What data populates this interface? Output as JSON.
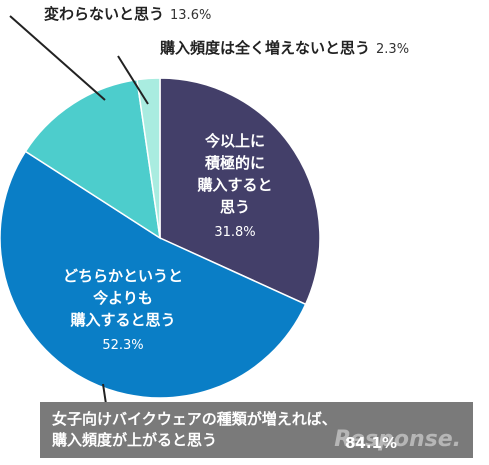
{
  "chart_data": {
    "type": "pie",
    "slices": [
      {
        "label": "今以上に積極的に購入すると思う",
        "label_lines": [
          "今以上に",
          "積極的に",
          "購入すると",
          "思う"
        ],
        "value": 31.8,
        "pct_label": "31.8%",
        "color": "#433f69"
      },
      {
        "label": "どちらかというと今よりも購入すると思う",
        "label_lines": [
          "どちらかというと",
          "今よりも",
          "購入すると思う"
        ],
        "value": 52.3,
        "pct_label": "52.3%",
        "color": "#0a7ec6"
      },
      {
        "label": "変わらないと思う",
        "value": 13.6,
        "pct_label": "13.6%",
        "color": "#4dcdcc"
      },
      {
        "label": "購入頻度は全く増えないと思う",
        "value": 2.3,
        "pct_label": "2.3%",
        "color": "#a9ece0"
      }
    ],
    "callout": {
      "text_line1": "女子向けバイクウェアの種類が増えれば、",
      "text_line2": "購入頻度が上がると思う",
      "total": "84.1%"
    }
  },
  "watermark": "Response."
}
